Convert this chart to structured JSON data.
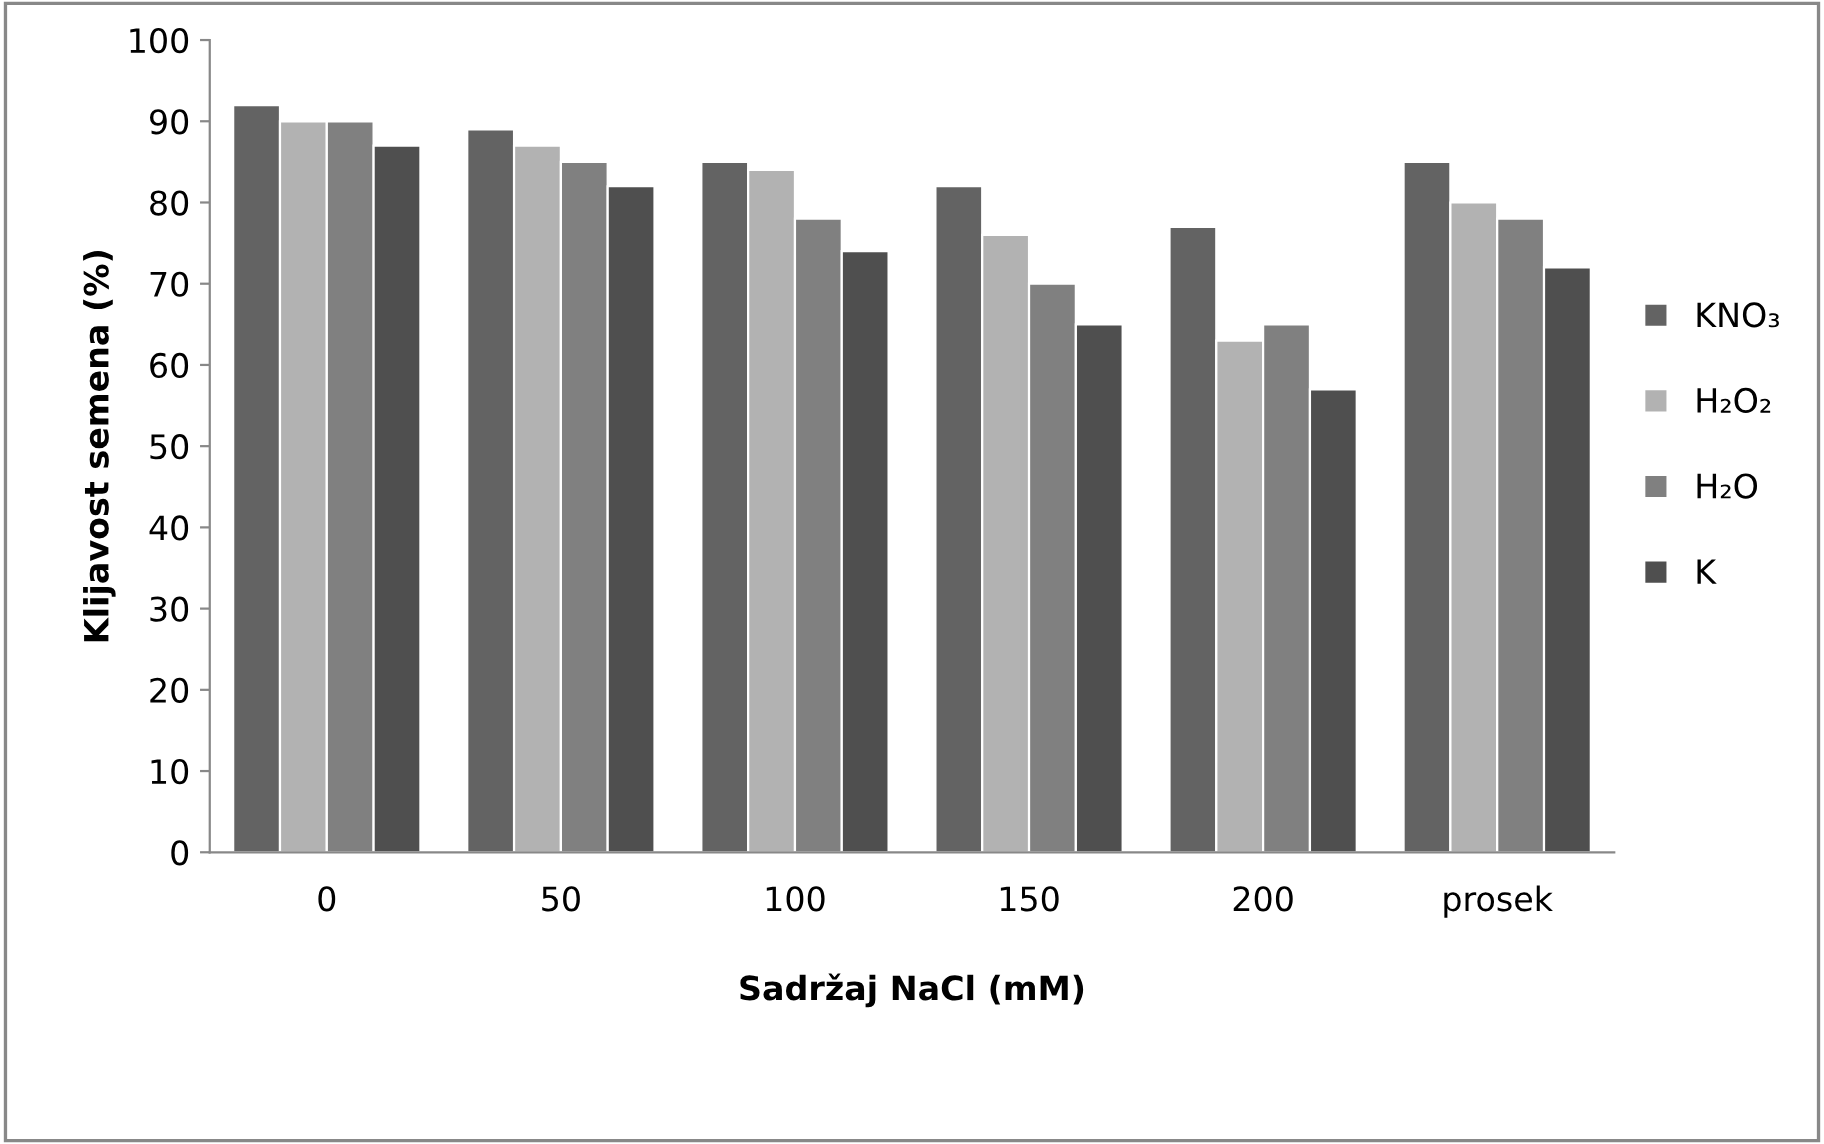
{
  "chart_data": {
    "type": "bar",
    "xlabel": "Sadržaj NaCl (mM)",
    "ylabel": "Klijavost semena (%)",
    "categories": [
      "0",
      "50",
      "100",
      "150",
      "200",
      "prosek"
    ],
    "series": [
      {
        "name": "KNO₃",
        "color": "#636363",
        "values": [
          92,
          89,
          85,
          82,
          77,
          85
        ]
      },
      {
        "name": "H₂O₂",
        "color": "#b2b2b2",
        "values": [
          90,
          87,
          84,
          76,
          63,
          80
        ]
      },
      {
        "name": "H₂O",
        "color": "#808080",
        "values": [
          90,
          85,
          78,
          70,
          65,
          78
        ]
      },
      {
        "name": "K",
        "color": "#4f4f4f",
        "values": [
          87,
          82,
          74,
          65,
          57,
          72
        ]
      }
    ],
    "ylim": [
      0,
      100
    ],
    "yticks": [
      0,
      10,
      20,
      30,
      40,
      50,
      60,
      70,
      80,
      90,
      100
    ],
    "grid": false,
    "legend": "right"
  }
}
